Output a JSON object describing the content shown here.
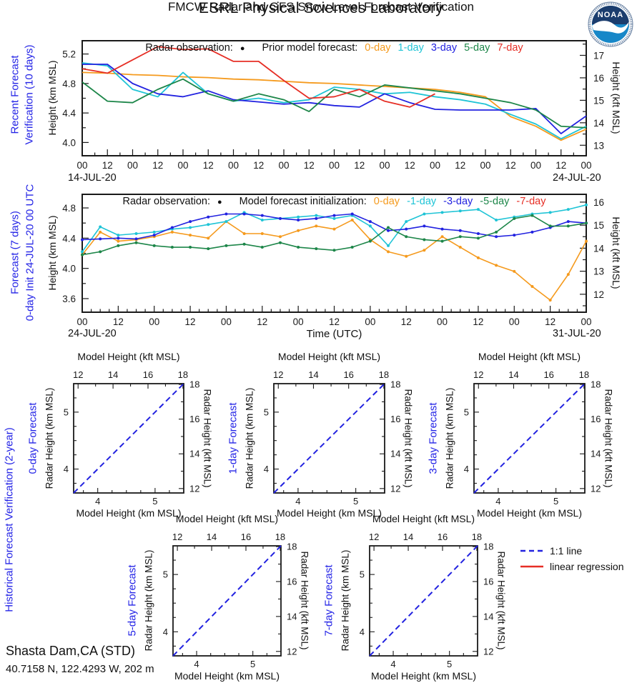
{
  "header": {
    "title": "ESRL Physical Sciences Laboratory",
    "subtitle": "FMCW Radar and GFS Snow Level Forecast Verification",
    "logo": {
      "text": "NOAA"
    }
  },
  "station": {
    "name": "Shasta Dam,CA (STD)",
    "coords": "40.7158 N, 122.4293 W, 202 m"
  },
  "colors": {
    "ink": "#1a1a1a",
    "label": "#2323E6",
    "orange": "#F59A1D",
    "cyan": "#1FC4D6",
    "blue": "#2222E0",
    "green": "#1D8649",
    "red": "#E62E25"
  },
  "chart_data": [
    {
      "id": "recent",
      "type": "line",
      "side_label_lines": [
        "Recent Forecast",
        "Verification (10 days)"
      ],
      "ylabel_left": "Height (km MSL)",
      "ylabel_right": "Height (kft MSL)",
      "legend": {
        "radar_label": "Radar observation:",
        "radar_marker": "●",
        "forecast_label": "Prior model forecast:",
        "items": [
          {
            "label": "0-day",
            "color": "#F59A1D"
          },
          {
            "label": "1-day",
            "color": "#1FC4D6"
          },
          {
            "label": "3-day",
            "color": "#2222E0"
          },
          {
            "label": "5-day",
            "color": "#1D8649"
          },
          {
            "label": "7-day",
            "color": "#E62E25"
          }
        ]
      },
      "x_days": 10,
      "x_minor_between": 1,
      "x_tick_labels": [
        "00",
        "12",
        "00",
        "12",
        "00",
        "12",
        "00",
        "12",
        "00",
        "12",
        "00",
        "12",
        "00",
        "12",
        "00",
        "12",
        "00",
        "12",
        "00",
        "12",
        "00"
      ],
      "x_date_left": "14-JUL-20",
      "x_date_right": "24-JUL-20",
      "ylim": [
        3.82,
        5.38
      ],
      "yticks_left": {
        "values": [
          4.0,
          4.2,
          4.4,
          4.6,
          4.8,
          5.0,
          5.2
        ],
        "labeled": [
          4.0,
          4.4,
          4.8,
          5.2
        ]
      },
      "yticks_right": {
        "values": [
          12.5,
          13,
          13.5,
          14,
          14.5,
          15,
          15.5,
          16,
          16.5,
          17,
          17.5
        ],
        "labeled": [
          13,
          14,
          15,
          16,
          17
        ]
      },
      "markers": false,
      "series": [
        {
          "name": "0-day",
          "color": "#F59A1D",
          "x_start": 0,
          "x_step": 0.5,
          "y": [
            4.95,
            4.94,
            4.92,
            4.91,
            4.89,
            4.88,
            4.86,
            4.85,
            4.83,
            4.81,
            4.8,
            4.78,
            4.76,
            4.74,
            4.72,
            4.68,
            4.62,
            4.35,
            4.22,
            4.03,
            4.18
          ]
        },
        {
          "name": "1-day",
          "color": "#1FC4D6",
          "x_start": 0,
          "x_step": 0.5,
          "y": [
            5.08,
            5.04,
            4.72,
            4.62,
            4.95,
            4.66,
            4.56,
            4.6,
            4.54,
            4.58,
            4.75,
            4.72,
            4.66,
            4.68,
            4.62,
            4.58,
            4.52,
            4.38,
            4.25,
            4.05,
            4.22
          ]
        },
        {
          "name": "3-day",
          "color": "#2222E0",
          "x_start": 0,
          "x_step": 0.5,
          "y": [
            5.06,
            5.06,
            4.8,
            4.66,
            4.62,
            4.7,
            4.58,
            4.55,
            4.52,
            4.54,
            4.5,
            4.48,
            4.66,
            4.54,
            4.45,
            4.44,
            4.44,
            4.44,
            4.46,
            4.12,
            4.36
          ]
        },
        {
          "name": "5-day",
          "color": "#1D8649",
          "x_start": 0,
          "x_step": 0.5,
          "y": [
            4.82,
            4.56,
            4.54,
            4.72,
            4.86,
            4.66,
            4.56,
            4.66,
            4.58,
            4.42,
            4.72,
            4.62,
            4.78,
            4.74,
            4.7,
            4.66,
            4.6,
            4.54,
            4.44,
            4.22,
            4.2
          ]
        },
        {
          "name": "7-day",
          "color": "#E62E25",
          "x_start": 0,
          "x_step": 0.5,
          "y": [
            5.0,
            4.94,
            5.12,
            5.3,
            5.26,
            5.27,
            5.1,
            5.1,
            4.84,
            4.6,
            4.62,
            4.72,
            4.56,
            4.48,
            4.66
          ]
        }
      ]
    },
    {
      "id": "forecast",
      "type": "line",
      "side_label_lines": [
        "Forecast (7 days)",
        "0-day Init 24-JUL-20 00 UTC"
      ],
      "xlabel": "Time (UTC)",
      "ylabel_left": "Height (km MSL)",
      "ylabel_right": "Height (kft MSL)",
      "legend": {
        "radar_label": "Radar observation:",
        "radar_marker": "●",
        "forecast_label": "Model forecast initialization:",
        "items": [
          {
            "label": "0-day",
            "color": "#F59A1D"
          },
          {
            "label": "-1-day",
            "color": "#1FC4D6"
          },
          {
            "label": "-3-day",
            "color": "#2222E0"
          },
          {
            "label": "-5-day",
            "color": "#1D8649"
          },
          {
            "label": "-7-day",
            "color": "#E62E25"
          }
        ]
      },
      "x_days": 7,
      "x_minor_between": 3,
      "x_tick_labels": [
        "00",
        "12",
        "00",
        "12",
        "00",
        "12",
        "00",
        "12",
        "00",
        "12",
        "00",
        "12",
        "00",
        "12",
        "00"
      ],
      "x_date_left": "24-JUL-20",
      "x_date_right": "31-JUL-20",
      "ylim": [
        3.42,
        4.98
      ],
      "yticks_left": {
        "values": [
          3.6,
          3.8,
          4.0,
          4.2,
          4.4,
          4.6,
          4.8
        ],
        "labeled": [
          3.6,
          4.0,
          4.4,
          4.8
        ]
      },
      "yticks_right": {
        "values": [
          11.5,
          12,
          12.5,
          13,
          13.5,
          14,
          14.5,
          15,
          15.5,
          16,
          16.5
        ],
        "labeled": [
          12,
          13,
          14,
          15,
          16
        ]
      },
      "markers": true,
      "series": [
        {
          "name": "0-day",
          "color": "#F59A1D",
          "x_start": 0,
          "x_step": 0.25,
          "y": [
            4.18,
            4.48,
            4.36,
            4.38,
            4.42,
            4.48,
            4.44,
            4.4,
            4.62,
            4.46,
            4.46,
            4.42,
            4.5,
            4.56,
            4.52,
            4.64,
            4.38,
            4.22,
            4.16,
            4.24,
            4.42,
            4.28,
            4.14,
            4.04,
            3.96,
            3.76,
            3.58,
            3.92,
            4.36
          ]
        },
        {
          "name": "-1-day",
          "color": "#1FC4D6",
          "x_start": 0,
          "x_step": 0.25,
          "y": [
            4.22,
            4.55,
            4.44,
            4.46,
            4.48,
            4.52,
            4.54,
            4.58,
            4.62,
            4.74,
            4.64,
            4.66,
            4.68,
            4.7,
            4.66,
            4.7,
            4.56,
            4.3,
            4.62,
            4.72,
            4.74,
            4.76,
            4.78,
            4.64,
            4.68,
            4.72,
            4.74,
            4.78,
            4.84
          ]
        },
        {
          "name": "-3-day",
          "color": "#2222E0",
          "x_start": 0,
          "x_step": 0.25,
          "y": [
            4.38,
            4.39,
            4.4,
            4.39,
            4.44,
            4.54,
            4.62,
            4.68,
            4.72,
            4.72,
            4.7,
            4.66,
            4.64,
            4.66,
            4.7,
            4.72,
            4.62,
            4.5,
            4.52,
            4.56,
            4.52,
            4.5,
            4.46,
            4.42,
            4.44,
            4.48,
            4.54,
            4.62,
            4.6
          ]
        },
        {
          "name": "-5-day",
          "color": "#1D8649",
          "x_start": 0,
          "x_step": 0.25,
          "y": [
            4.18,
            4.22,
            4.3,
            4.34,
            4.3,
            4.28,
            4.28,
            4.26,
            4.3,
            4.32,
            4.28,
            4.34,
            4.28,
            4.26,
            4.24,
            4.28,
            4.36,
            4.54,
            4.42,
            4.38,
            4.36,
            4.42,
            4.4,
            4.48,
            4.66,
            4.7,
            4.56,
            4.56,
            4.6
          ]
        },
        {
          "name": "-7-day",
          "color": "#E62E25",
          "x_start": 0,
          "x_step": 0.25,
          "y": []
        }
      ]
    },
    {
      "id": "historical",
      "type": "scatter",
      "section_label": "Historical Forecast Verification (2-year)",
      "common": {
        "top_label": "Model Height (kft MSL)",
        "bottom_label": "Model Height (km MSL)",
        "left_label": "Radar Height (km MSL)",
        "right_label": "Radar Height (kft MSL)",
        "lim_km": [
          3.58,
          5.5
        ],
        "km_ticks": {
          "values": [
            3.75,
            4,
            4.25,
            4.5,
            4.75,
            5,
            5.25
          ],
          "labeled": [
            4,
            5
          ]
        },
        "kft_ticks": {
          "values": [
            12,
            13,
            14,
            15,
            16,
            17,
            18
          ],
          "labeled": [
            12,
            14,
            16,
            18
          ]
        },
        "diagonal": {
          "color": "#2222E0",
          "style": "dashed"
        }
      },
      "panels": [
        {
          "title": "0-day Forecast"
        },
        {
          "title": "1-day Forecast"
        },
        {
          "title": "3-day Forecast"
        },
        {
          "title": "5-day Forecast"
        },
        {
          "title": "7-day Forecast"
        }
      ],
      "legend": [
        {
          "label": "1:1 line",
          "color": "#2222E0",
          "dashed": true
        },
        {
          "label": "linear regression",
          "color": "#E62E25",
          "dashed": false
        }
      ]
    }
  ]
}
